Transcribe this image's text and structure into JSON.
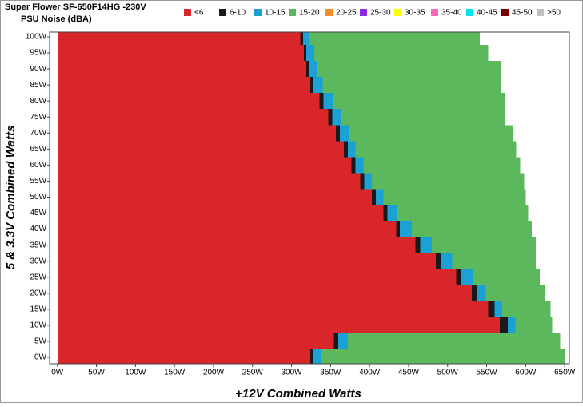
{
  "chart_data": {
    "type": "heatmap",
    "title": "Super Flower SF-650F14HG -230V",
    "subtitle": "PSU Noise (dBA)",
    "x_label": "+12V Combined Watts",
    "y_label": "5 & 3.3V Combined Watts",
    "xlim": [
      -10,
      656
    ],
    "ylim": [
      -2,
      101.5
    ],
    "xticks": [
      {
        "value": 0,
        "label": "0W"
      },
      {
        "value": 50,
        "label": "50W"
      },
      {
        "value": 100,
        "label": "100W"
      },
      {
        "value": 150,
        "label": "150W"
      },
      {
        "value": 200,
        "label": "200W"
      },
      {
        "value": 250,
        "label": "250W"
      },
      {
        "value": 300,
        "label": "300W"
      },
      {
        "value": 350,
        "label": "350W"
      },
      {
        "value": 400,
        "label": "400W"
      },
      {
        "value": 450,
        "label": "450W"
      },
      {
        "value": 500,
        "label": "500W"
      },
      {
        "value": 550,
        "label": "550W"
      },
      {
        "value": 600,
        "label": "600W"
      },
      {
        "value": 650,
        "label": "650W"
      }
    ],
    "yticks": [
      {
        "value": 0,
        "label": "0W"
      },
      {
        "value": 5,
        "label": "5W"
      },
      {
        "value": 10,
        "label": "10W"
      },
      {
        "value": 15,
        "label": "15W"
      },
      {
        "value": 20,
        "label": "20W"
      },
      {
        "value": 25,
        "label": "25W"
      },
      {
        "value": 30,
        "label": "30W"
      },
      {
        "value": 35,
        "label": "35W"
      },
      {
        "value": 40,
        "label": "40W"
      },
      {
        "value": 45,
        "label": "45W"
      },
      {
        "value": 50,
        "label": "50W"
      },
      {
        "value": 55,
        "label": "55W"
      },
      {
        "value": 60,
        "label": "60W"
      },
      {
        "value": 65,
        "label": "65W"
      },
      {
        "value": 70,
        "label": "70W"
      },
      {
        "value": 75,
        "label": "75W"
      },
      {
        "value": 80,
        "label": "80W"
      },
      {
        "value": 85,
        "label": "85W"
      },
      {
        "value": 90,
        "label": "90W"
      },
      {
        "value": 95,
        "label": "95W"
      },
      {
        "value": 100,
        "label": "100W"
      }
    ],
    "y": [
      0,
      5,
      10,
      15,
      20,
      25,
      30,
      35,
      40,
      45,
      50,
      55,
      60,
      65,
      70,
      75,
      80,
      85,
      90,
      95,
      100
    ],
    "series": [
      {
        "name": "<6",
        "color": "#d9262a",
        "values": [
          324,
          354,
          567,
          552,
          531,
          511,
          485,
          459,
          434,
          418,
          403,
          388,
          377,
          367,
          357,
          347,
          336,
          324,
          319,
          316,
          311
        ]
      },
      {
        "name": "6-10",
        "color": "#1a1a1a",
        "values": [
          4,
          6,
          10,
          8,
          6,
          6,
          6,
          6,
          5,
          5,
          5,
          5,
          5,
          5,
          5,
          5,
          5,
          4,
          4,
          3,
          4
        ]
      },
      {
        "name": "10-15",
        "color": "#1ba1d6",
        "values": [
          10,
          12,
          10,
          10,
          12,
          15,
          15,
          15,
          15,
          12,
          10,
          10,
          10,
          10,
          12,
          12,
          12,
          12,
          10,
          10,
          8
        ]
      },
      {
        "name": "15-20",
        "color": "#5cb85c",
        "values": [
          312,
          272,
          47,
          62,
          75,
          86,
          107,
          133,
          154,
          168,
          182,
          195,
          201,
          206,
          209,
          210,
          221,
          229,
          236,
          223,
          218
        ]
      },
      {
        "name": "20-25",
        "color": "#f28c28"
      },
      {
        "name": "25-30",
        "color": "#8a2be2"
      },
      {
        "name": "30-35",
        "color": "#ffff00"
      },
      {
        "name": "35-40",
        "color": "#ff69b4"
      },
      {
        "name": "40-45",
        "color": "#00e5ee"
      },
      {
        "name": "45-50",
        "color": "#7b0000"
      },
      {
        "name": ">50",
        "color": "#c0c0c0"
      }
    ]
  }
}
